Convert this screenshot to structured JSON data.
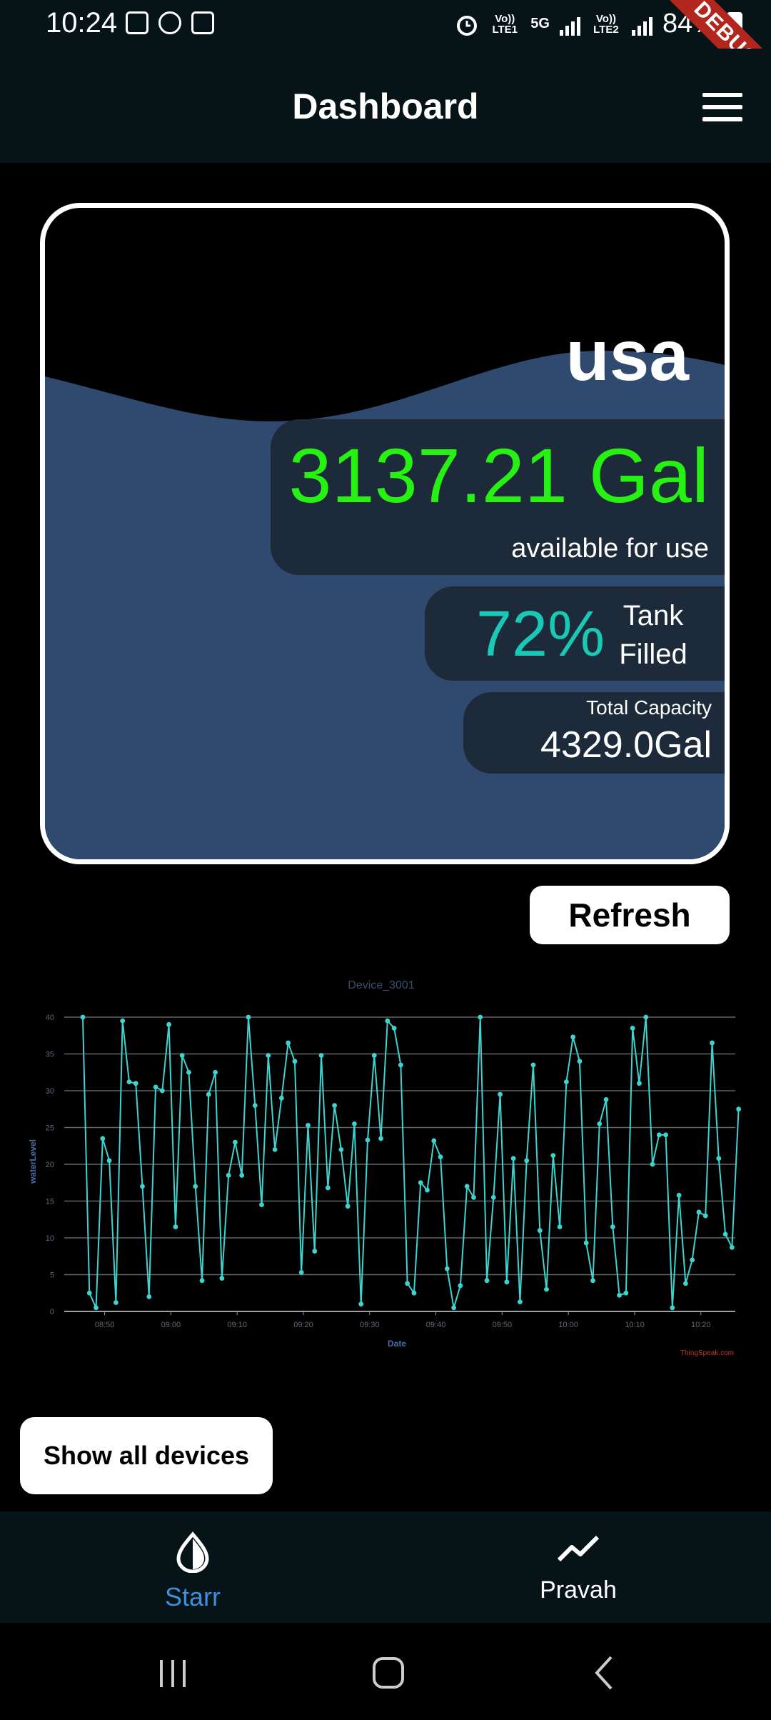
{
  "status_bar": {
    "time": "10:24",
    "network_1": "Vo)) LTE1",
    "network_5g": "5G",
    "network_2": "Vo)) LTE2",
    "battery": "84%",
    "debug_banner": "DEBUG",
    "icons": [
      "gallery-icon",
      "sync-icon",
      "clock-app-icon",
      "alarm-icon",
      "signal-icon",
      "battery-icon"
    ]
  },
  "app_bar": {
    "title": "Dashboard",
    "menu_icon": "hamburger-menu-icon"
  },
  "tank_card": {
    "device_name": "usa",
    "available_value": "3137.21 Gal",
    "available_label": "available for use",
    "fill_percent": "72%",
    "fill_label_line1": "Tank",
    "fill_label_line2": "Filled",
    "capacity_label": "Total Capacity",
    "capacity_value": "4329.0Gal",
    "colors": {
      "available": "#27f013",
      "fill_percent": "#19c9b5",
      "water": "#2f4a6e",
      "panel": "#1c2a3a"
    }
  },
  "refresh_label": "Refresh",
  "chart_data": {
    "type": "line",
    "title": "Device_3001",
    "xlabel": "Date",
    "ylabel": "waterLevel",
    "credit": "ThingSpeak.com",
    "ylim": [
      0,
      40
    ],
    "y_ticks": [
      "0",
      "5",
      "10",
      "15",
      "20",
      "25",
      "30",
      "35",
      "40"
    ],
    "x_ticks": [
      "08:50",
      "09:00",
      "09:10",
      "09:20",
      "09:30",
      "09:40",
      "09:50",
      "10:00",
      "10:10",
      "10:20"
    ],
    "x_tick_positions": [
      3.3,
      13.3,
      23.3,
      33.3,
      43.3,
      53.3,
      63.3,
      73.3,
      83.3,
      93.3
    ],
    "xlim": [
      -2.8,
      98.5
    ],
    "grid": true,
    "line_color": "#3ed3cf",
    "values": [
      40,
      2.5,
      0.5,
      23.5,
      20.5,
      1.2,
      39.5,
      31.2,
      31,
      17,
      2,
      30.5,
      30,
      39,
      11.5,
      34.8,
      32.5,
      17,
      4.2,
      29.5,
      32.5,
      4.5,
      18.5,
      23,
      18.5,
      40,
      28,
      14.5,
      34.8,
      22,
      29,
      36.5,
      34,
      5.3,
      25.3,
      8.2,
      34.8,
      16.8,
      28,
      22,
      14.3,
      25.5,
      1,
      23.3,
      34.8,
      23.5,
      39.5,
      38.5,
      33.5,
      3.8,
      2.5,
      17.5,
      16.5,
      23.2,
      21,
      5.8,
      0.5,
      3.5,
      17,
      15.5,
      40,
      4.2,
      15.5,
      29.5,
      4,
      20.8,
      1.3,
      20.5,
      33.5,
      11,
      3,
      21.2,
      11.5,
      31.2,
      37.3,
      34,
      9.3,
      4.2,
      25.5,
      28.8,
      11.5,
      2.2,
      2.5,
      38.5,
      31,
      40,
      20,
      24,
      24,
      0.5,
      15.8,
      3.8,
      7,
      13.5,
      13,
      36.5,
      20.8,
      10.5,
      8.7,
      27.5
    ]
  },
  "show_all_label": "Show all devices",
  "bottom_nav": {
    "items": [
      {
        "label": "Starr",
        "icon": "water-drop-icon",
        "active": true
      },
      {
        "label": "Pravah",
        "icon": "trend-line-icon",
        "active": false
      }
    ]
  },
  "system_nav": [
    "recent-apps-icon",
    "home-icon",
    "back-icon"
  ]
}
